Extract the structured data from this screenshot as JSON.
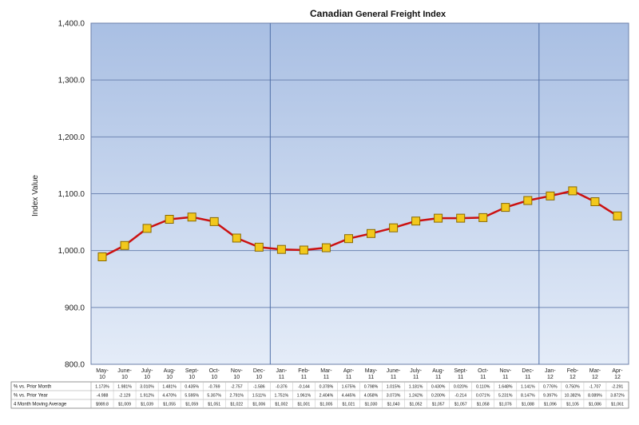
{
  "chart_data": {
    "type": "line",
    "title": "Canadian",
    "title_rest": "General Freight Index",
    "ylabel": "Index Value",
    "ylim": [
      800,
      1400
    ],
    "yticks": [
      "800.0",
      "900.0",
      "1,000.0",
      "1,100.0",
      "1,200.0",
      "1,300.0",
      "1,400.0"
    ],
    "grid": true,
    "categories": [
      [
        "May-",
        "10"
      ],
      [
        "June-",
        "10"
      ],
      [
        "July-",
        "10"
      ],
      [
        "Aug-",
        "10"
      ],
      [
        "Sept-",
        "10"
      ],
      [
        "Oct-",
        "10"
      ],
      [
        "Nov-",
        "10"
      ],
      [
        "Dec-",
        "10"
      ],
      [
        "Jan-",
        "11"
      ],
      [
        "Feb-",
        "11"
      ],
      [
        "Mar-",
        "11"
      ],
      [
        "Apr-",
        "11"
      ],
      [
        "May-",
        "11"
      ],
      [
        "June-",
        "11"
      ],
      [
        "July-",
        "11"
      ],
      [
        "Aug-",
        "11"
      ],
      [
        "Sept-",
        "11"
      ],
      [
        "Oct-",
        "11"
      ],
      [
        "Nov-",
        "11"
      ],
      [
        "Dec-",
        "11"
      ],
      [
        "Jan-",
        "12"
      ],
      [
        "Feb-",
        "12"
      ],
      [
        "Mar-",
        "12"
      ],
      [
        "Apr-",
        "12"
      ]
    ],
    "values": [
      989,
      1009,
      1039,
      1055,
      1059,
      1051,
      1022,
      1006,
      1002,
      1001,
      1005,
      1021,
      1030,
      1040,
      1052,
      1057,
      1057,
      1058,
      1076,
      1088,
      1096,
      1105,
      1086,
      1061
    ],
    "colors": {
      "line": "#cc1111",
      "marker_fill": "#f2c81c",
      "marker_stroke": "#8a6a00",
      "plot_bg_top": "#a9bfe3",
      "plot_bg_bottom": "#e4ecf8",
      "grid": "#6f86b3",
      "year_divider": "#4f6fa8"
    },
    "table": {
      "rows": [
        {
          "label": "% vs. Prior Month",
          "cells": [
            "1.173%",
            "1.981%",
            "3.010%",
            "1.481%",
            "0.435%",
            "-0.769",
            "-2.757",
            "-1.586",
            "-0.376",
            "-0.144",
            "0.378%",
            "1.675%",
            "0.798%",
            "1.015%",
            "1.181%",
            "0.430%",
            "0.020%",
            "0.110%",
            "1.648%",
            "1.141%",
            "0.776%",
            "0.750%",
            "-1.707",
            "-2.291"
          ]
        },
        {
          "label": "% vs. Prior Year",
          "cells": [
            "-4.988",
            "-2.129",
            "1.912%",
            "4.470%",
            "5.595%",
            "5.307%",
            "2.791%",
            "1.511%",
            "1.751%",
            "1.961%",
            "2.404%",
            "4.445%",
            "4.058%",
            "3.073%",
            "1.242%",
            "0.200%",
            "-0.214",
            "0.071%",
            "5.231%",
            "8.147%",
            "9.397%",
            "10.382%",
            "8.089%",
            "3.872%"
          ]
        },
        {
          "label": "4 Month Moving Average",
          "cells": [
            "$989.8",
            "$1,009",
            "$1,039",
            "$1,055",
            "$1,059",
            "$1,051",
            "$1,022",
            "$1,006",
            "$1,002",
            "$1,001",
            "$1,005",
            "$1,021",
            "$1,030",
            "$1,040",
            "$1,052",
            "$1,057",
            "$1,057",
            "$1,058",
            "$1,076",
            "$1,088",
            "$1,096",
            "$1,105",
            "$1,086",
            "$1,061"
          ]
        }
      ]
    }
  }
}
